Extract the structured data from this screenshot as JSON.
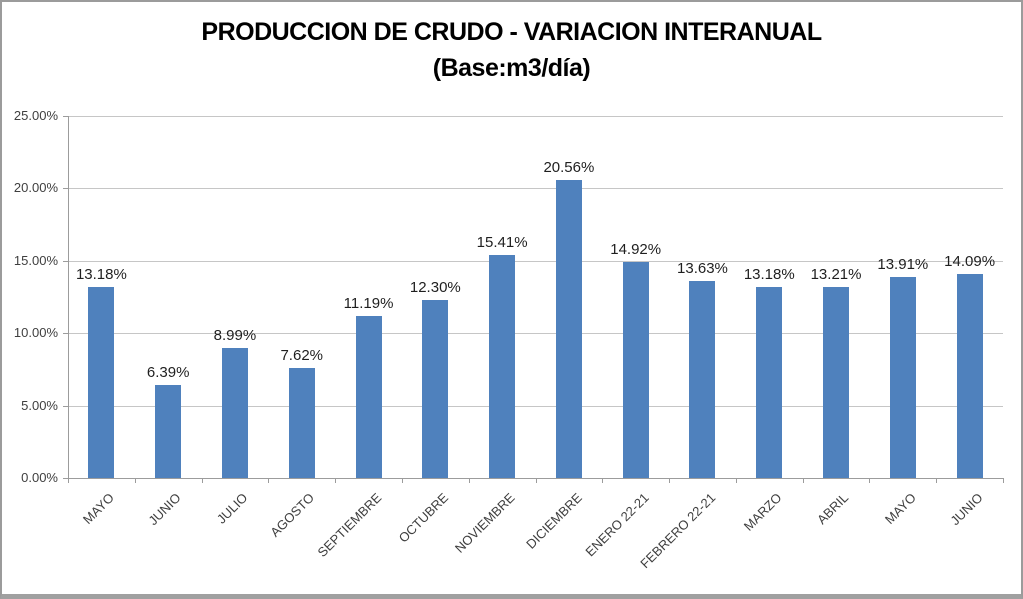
{
  "chart_data": {
    "type": "bar",
    "title": "PRODUCCION DE CRUDO - VARIACION INTERANUAL (Base:m3/día)",
    "title_line1": "PRODUCCION DE CRUDO - VARIACION INTERANUAL",
    "title_line2": "(Base:m3/día)",
    "xlabel": "",
    "ylabel": "",
    "categories": [
      "MAYO",
      "JUNIO",
      "JULIO",
      "AGOSTO",
      "SEPTIEMBRE",
      "OCTUBRE",
      "NOVIEMBRE",
      "DICIEMBRE",
      "ENERO 22-21",
      "FEBRERO 22-21",
      "MARZO",
      "ABRIL",
      "MAYO",
      "JUNIO"
    ],
    "values": [
      13.18,
      6.39,
      8.99,
      7.62,
      11.19,
      12.3,
      15.41,
      20.56,
      14.92,
      13.63,
      13.18,
      13.21,
      13.91,
      14.09
    ],
    "value_labels": [
      "13.18%",
      "6.39%",
      "8.99%",
      "7.62%",
      "11.19%",
      "12.30%",
      "15.41%",
      "20.56%",
      "14.92%",
      "13.63%",
      "13.18%",
      "13.21%",
      "13.91%",
      "14.09%"
    ],
    "y_tick_values": [
      0,
      5,
      10,
      15,
      20,
      25
    ],
    "y_tick_labels": [
      "0.00%",
      "5.00%",
      "10.00%",
      "15.00%",
      "20.00%",
      "25.00%"
    ],
    "ylim": [
      0,
      25
    ],
    "grid": true,
    "legend_position": "none",
    "bar_color": "#4f81bd",
    "gridline_color": "#c6c6c6",
    "axis_color": "#9c9c9c",
    "title_color": "#000000",
    "axis_label_color": "#3f3f3f",
    "data_label_color": "#1f1f1f"
  }
}
